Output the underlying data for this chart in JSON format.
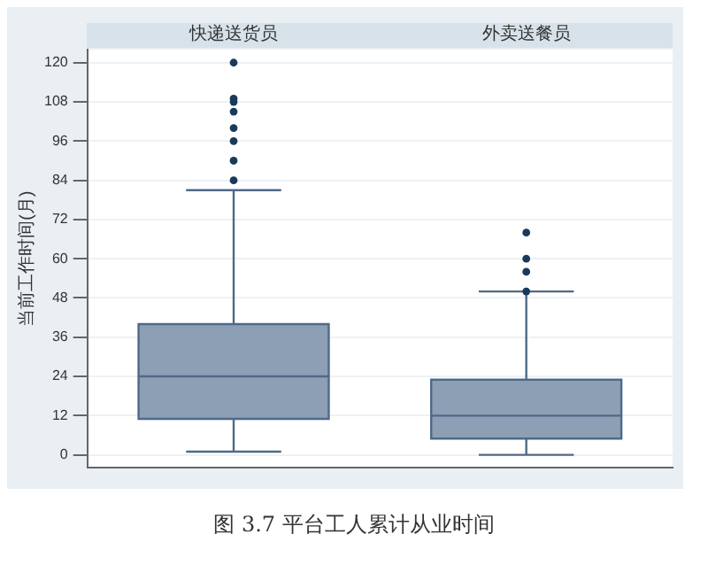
{
  "chart_data": {
    "type": "box",
    "ylabel": "当前工作时间(月)",
    "categories": [
      "快递送货员",
      "外卖送餐员"
    ],
    "boxes": [
      {
        "low": 1,
        "q1": 11,
        "median": 24,
        "q3": 40,
        "high": 81,
        "outliers": [
          84,
          90,
          96,
          100,
          105,
          108,
          109,
          120
        ]
      },
      {
        "low": 0,
        "q1": 5,
        "median": 12,
        "q3": 23,
        "high": 50,
        "outliers": [
          50,
          56,
          60,
          68
        ]
      }
    ],
    "colors": [
      "#8c9fb4",
      "#8c9fb4"
    ],
    "ylim": [
      -4,
      124
    ],
    "yticks": [
      0,
      12,
      24,
      36,
      48,
      60,
      72,
      84,
      96,
      108,
      120
    ],
    "grid": "y",
    "annotations": [
      "图 3.7 平台工人累计从业时间"
    ]
  }
}
